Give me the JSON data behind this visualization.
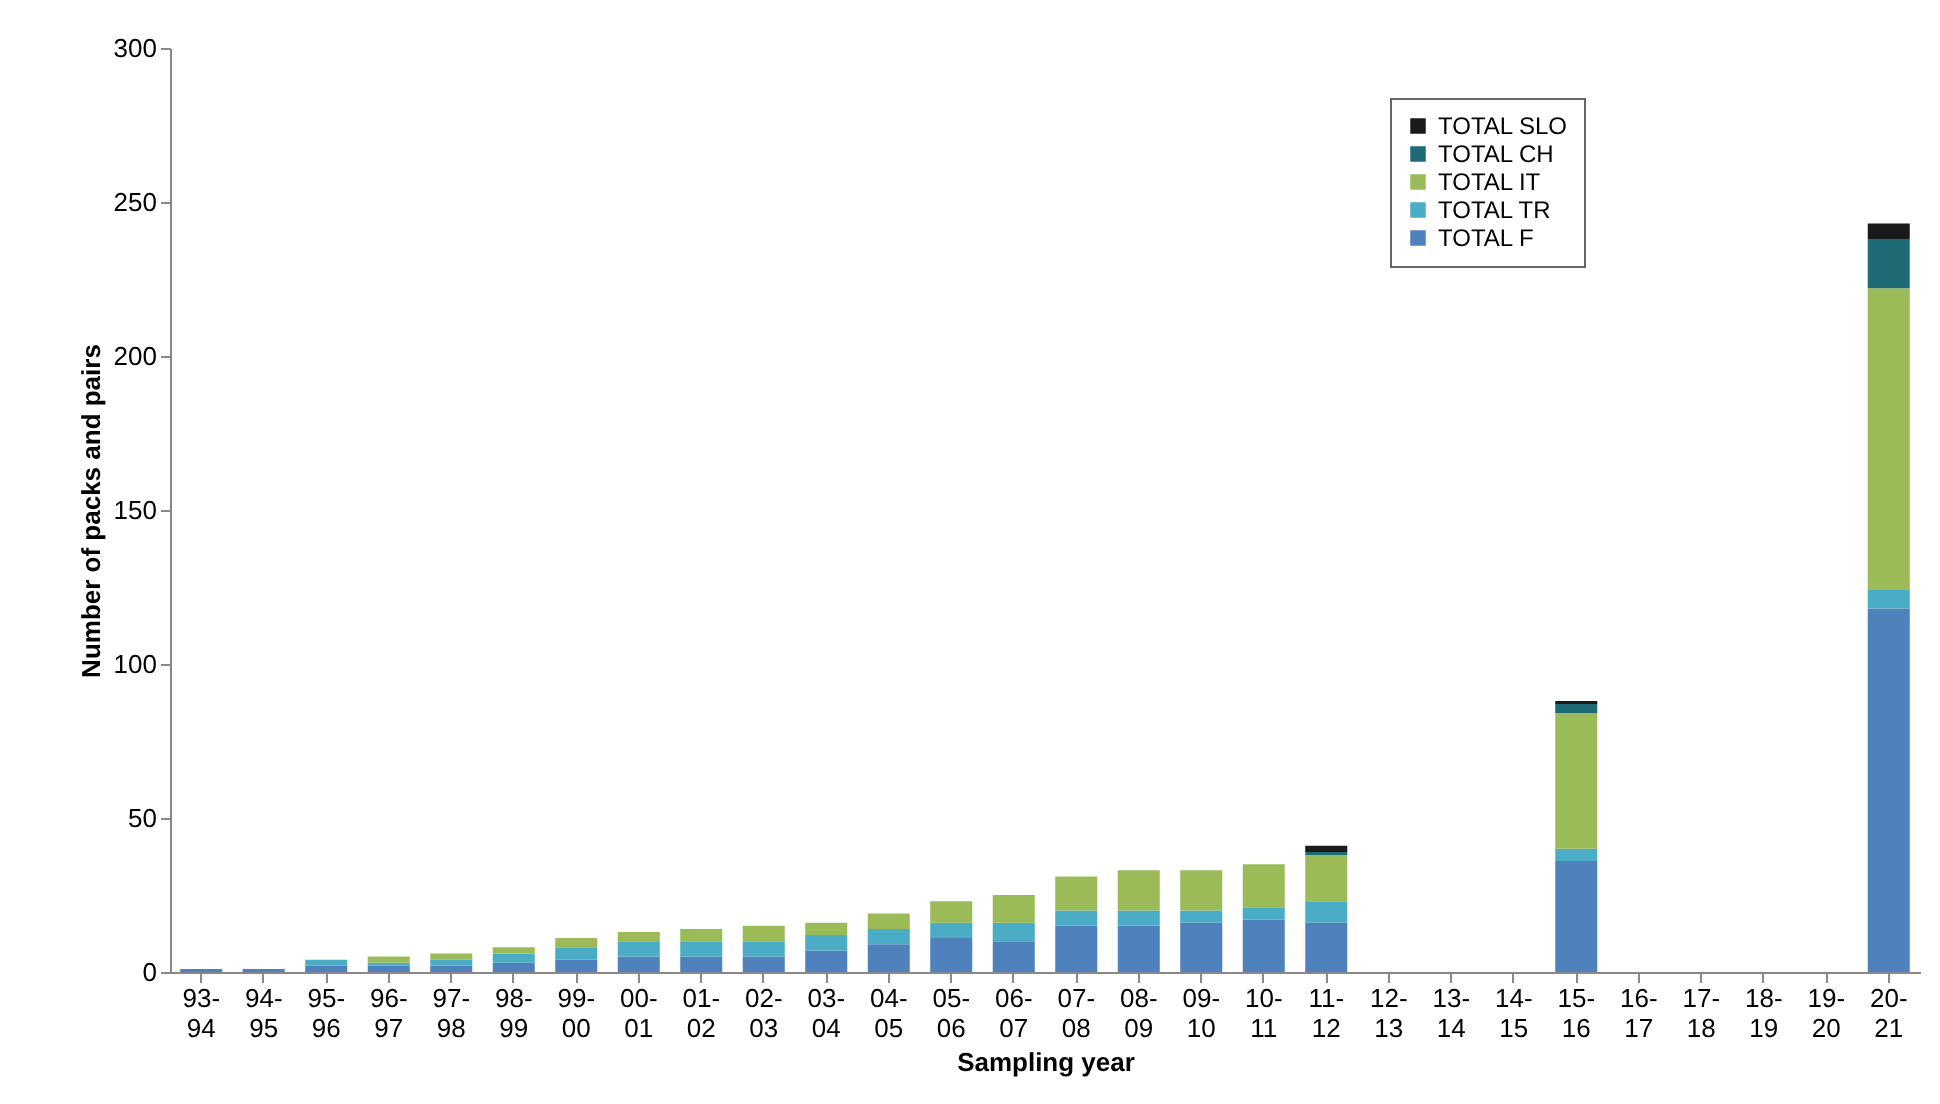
{
  "chart_data": {
    "type": "bar",
    "stacked": true,
    "xlabel": "Sampling year",
    "ylabel": "Number of  packs and pairs",
    "categories": [
      "93-94",
      "94-95",
      "95-96",
      "96-97",
      "97-98",
      "98-99",
      "99-00",
      "00-01",
      "01-02",
      "02-03",
      "03-04",
      "04-05",
      "05-06",
      "06-07",
      "07-08",
      "08-09",
      "09-10",
      "10-11",
      "11-12",
      "12-13",
      "13-14",
      "14-15",
      "15-16",
      "16-17",
      "17-18",
      "18-19",
      "19-20",
      "20-21"
    ],
    "series": [
      {
        "name": "TOTAL F",
        "color": "#4f81bd",
        "values": [
          1,
          1,
          2,
          2,
          2,
          3,
          4,
          5,
          5,
          5,
          7,
          9,
          11,
          10,
          15,
          15,
          16,
          17,
          16,
          null,
          null,
          null,
          36,
          null,
          null,
          null,
          null,
          118
        ]
      },
      {
        "name": "TOTAL TR",
        "color": "#4bacc6",
        "values": [
          0,
          0,
          2,
          1,
          2,
          3,
          4,
          5,
          5,
          5,
          5,
          5,
          5,
          6,
          5,
          5,
          4,
          4,
          7,
          null,
          null,
          null,
          4,
          null,
          null,
          null,
          null,
          6
        ]
      },
      {
        "name": "TOTAL IT",
        "color": "#9bbb59",
        "values": [
          0,
          0,
          0,
          2,
          2,
          2,
          3,
          3,
          4,
          5,
          4,
          5,
          7,
          9,
          11,
          13,
          13,
          14,
          15,
          null,
          null,
          null,
          44,
          null,
          null,
          null,
          null,
          98
        ]
      },
      {
        "name": "TOTAL CH",
        "color": "#1f6b75",
        "values": [
          0,
          0,
          0,
          0,
          0,
          0,
          0,
          0,
          0,
          0,
          0,
          0,
          0,
          0,
          0,
          0,
          0,
          0,
          1,
          null,
          null,
          null,
          3,
          null,
          null,
          null,
          null,
          16
        ]
      },
      {
        "name": "TOTAL SLO",
        "color": "#1a1a1a",
        "values": [
          0,
          0,
          0,
          0,
          0,
          0,
          0,
          0,
          0,
          0,
          0,
          0,
          0,
          0,
          0,
          0,
          0,
          0,
          2,
          null,
          null,
          null,
          1,
          null,
          null,
          null,
          null,
          5
        ]
      }
    ],
    "ylim": [
      0,
      300
    ],
    "yticks": [
      0,
      50,
      100,
      150,
      200,
      250,
      300
    ],
    "legend": "top right"
  }
}
